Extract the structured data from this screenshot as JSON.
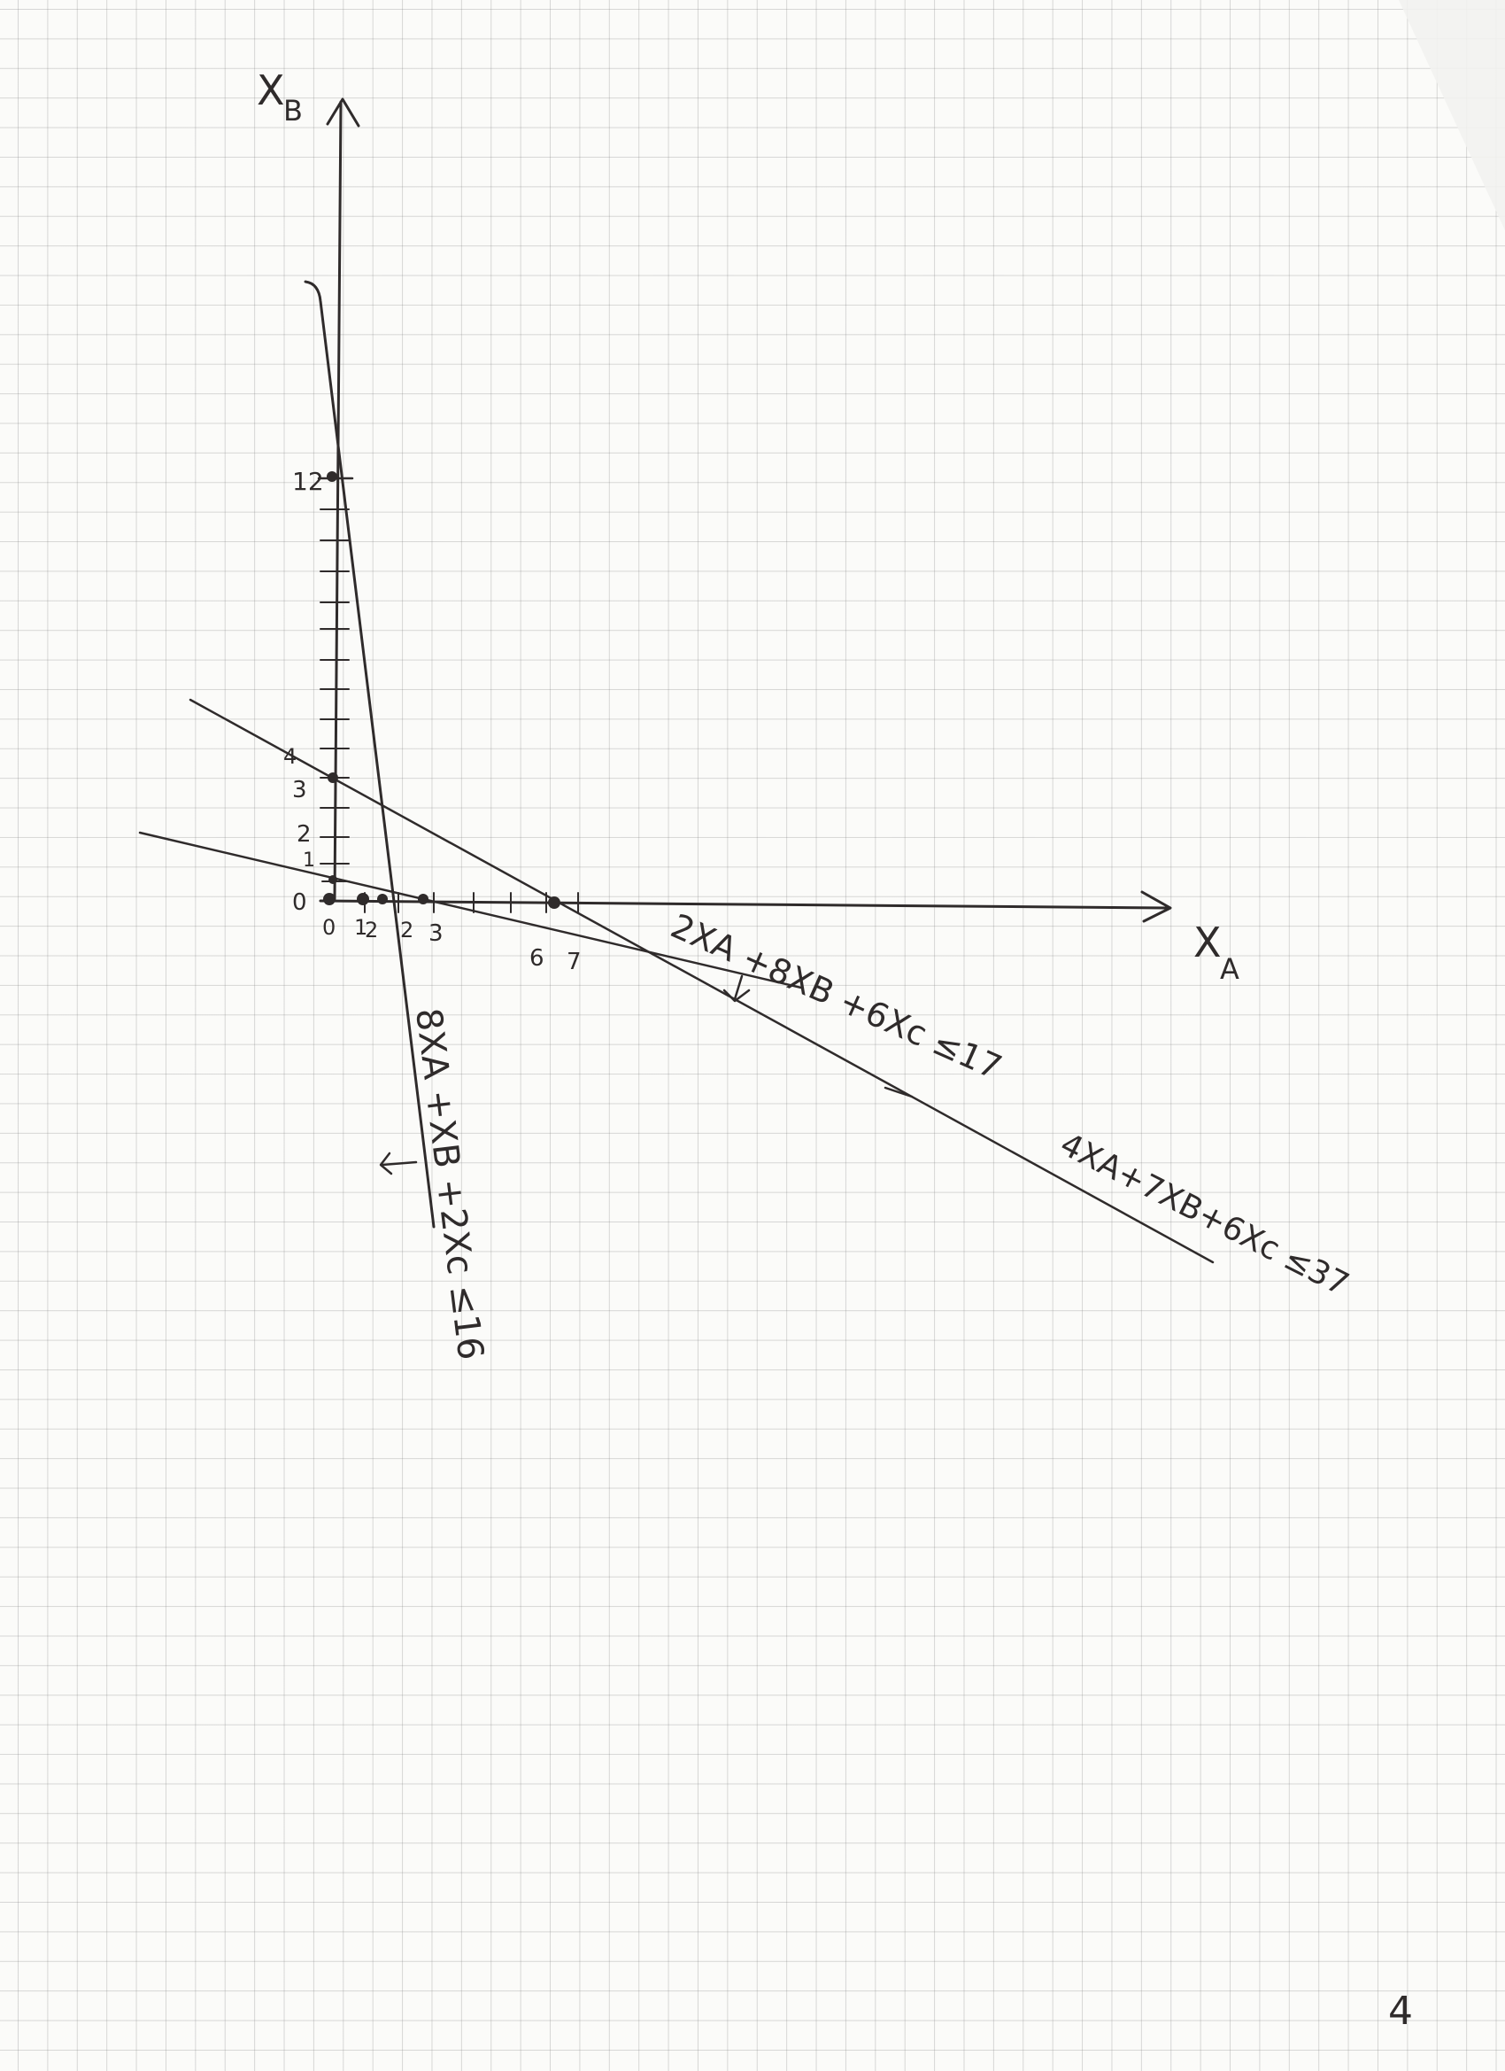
{
  "axes": {
    "x_label_main": "X",
    "x_label_sub": "A",
    "y_label_main": "X",
    "y_label_sub": "B"
  },
  "y_tick_labels": [
    "12",
    "4",
    "3",
    "2",
    "1",
    "0"
  ],
  "x_tick_labels": [
    "0",
    "1",
    "2",
    "2",
    "3",
    "6",
    "7"
  ],
  "constraints": [
    {
      "id": "c1",
      "text": "8XA +XB +2Xc ≤16"
    },
    {
      "id": "c2",
      "text": "2XA +8XB +6Xc ≤17"
    },
    {
      "id": "c3",
      "text": "4XA+7XB+6Xc ≤37"
    }
  ],
  "page_number": "4",
  "colors": {
    "ink": "#2f2b2b",
    "paper": "#fbfbf9",
    "grid": "#bdbdbd"
  }
}
